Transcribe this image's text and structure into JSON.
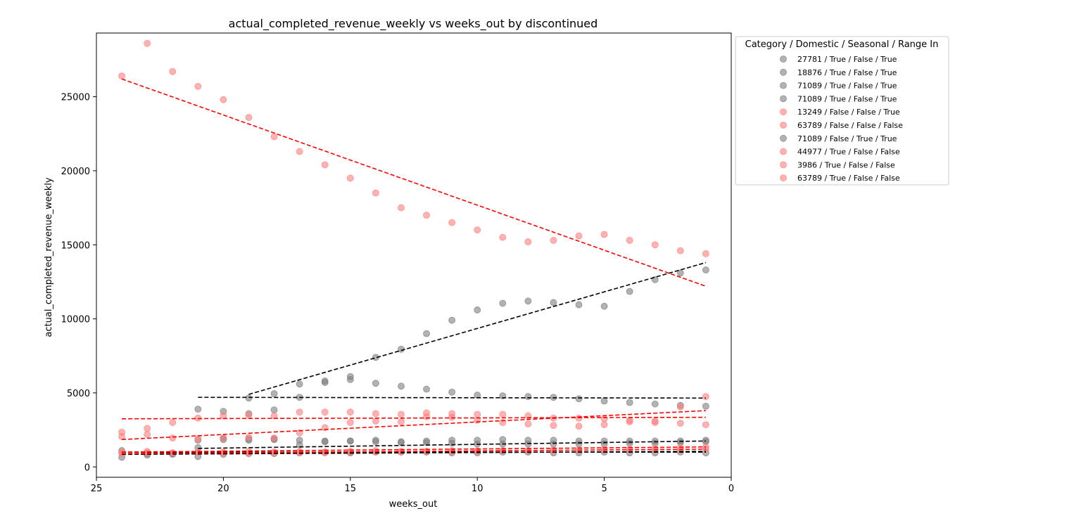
{
  "chart_data": {
    "type": "scatter",
    "title": "actual_completed_revenue_weekly vs weeks_out by discontinued",
    "xlabel": "weeks_out",
    "ylabel": "actual_completed_revenue_weekly",
    "xlim": [
      25,
      0
    ],
    "ylim": [
      -700,
      29300
    ],
    "xticks": [
      25,
      20,
      15,
      10,
      5,
      0
    ],
    "yticks": [
      0,
      5000,
      10000,
      15000,
      20000,
      25000
    ],
    "grid": false,
    "legend": {
      "title": "Category / Domestic / Seasonal / Range In",
      "placement": "outside-upper-right"
    },
    "colors": {
      "true_color": "#7f7f7f",
      "false_color": "#ff7f7f",
      "true_line": "#000000",
      "false_line": "#ff0000"
    },
    "series": [
      {
        "name": "27781 / True / False / True",
        "discontinued": true,
        "x": [
          19,
          18,
          17,
          16,
          15,
          14,
          13,
          12,
          11,
          10,
          9,
          8,
          7,
          6,
          5,
          4,
          3,
          2,
          1
        ],
        "y": [
          4650,
          4950,
          5600,
          5700,
          6100,
          7400,
          7950,
          9000,
          9900,
          10600,
          11050,
          11200,
          11100,
          10950,
          10850,
          11850,
          12650,
          13100,
          13300
        ],
        "trend": [
          [
            19,
            4900
          ],
          [
            1,
            13800
          ]
        ]
      },
      {
        "name": "18876 / True / False / True",
        "discontinued": true,
        "x": [
          21,
          20,
          19,
          18,
          17,
          16,
          15,
          14,
          13,
          12,
          11,
          10,
          9,
          8,
          7,
          6,
          5,
          4,
          3,
          2,
          1
        ],
        "y": [
          3900,
          3750,
          3600,
          3850,
          4700,
          5800,
          5900,
          5650,
          5450,
          5250,
          5050,
          4850,
          4800,
          4750,
          4700,
          4600,
          4450,
          4350,
          4250,
          4150,
          4100
        ],
        "trend": [
          [
            21,
            4700
          ],
          [
            1,
            4650
          ]
        ]
      },
      {
        "name": "71089 / True / False / True",
        "discontinued": true,
        "x": [
          24,
          23,
          22,
          21,
          20,
          19,
          18,
          17,
          16,
          15,
          14,
          13,
          12,
          11,
          10,
          9,
          8,
          7,
          6,
          5,
          4,
          3,
          2,
          1
        ],
        "y": [
          650,
          800,
          850,
          700,
          850,
          900,
          900,
          950,
          1000,
          950,
          1000,
          1000,
          1000,
          950,
          950,
          1000,
          1000,
          950,
          950,
          1000,
          950,
          950,
          1000,
          950
        ],
        "trend": [
          [
            24,
            850
          ],
          [
            1,
            1050
          ]
        ]
      },
      {
        "name": "71089 / True / False / True",
        "discontinued": true,
        "x": [
          21,
          20,
          19,
          18,
          17,
          16,
          15,
          14,
          13,
          12,
          11,
          10,
          9,
          8,
          7,
          6,
          5,
          4,
          3,
          2,
          1
        ],
        "y": [
          1300,
          1850,
          1900,
          1900,
          1800,
          1750,
          1750,
          1700,
          1650,
          1650,
          1600,
          1550,
          1550,
          1550,
          1550,
          1550,
          1550,
          1600,
          1600,
          1650,
          1700
        ],
        "trend": [
          [
            21,
            1250
          ],
          [
            1,
            1750
          ]
        ]
      },
      {
        "name": "13249 / False / False / True",
        "discontinued": false,
        "x": [
          24,
          23,
          22,
          21,
          20,
          19,
          18,
          17,
          16,
          15,
          14,
          13,
          12,
          11,
          10,
          9,
          8,
          7,
          6,
          5,
          4,
          3,
          2,
          1
        ],
        "y": [
          26400,
          28600,
          26700,
          25700,
          24800,
          23600,
          22300,
          21300,
          20400,
          19500,
          18500,
          17500,
          17000,
          16500,
          16000,
          15500,
          15200,
          15300,
          15600,
          15700,
          15300,
          15000,
          14600,
          14400
        ],
        "trend": [
          [
            24,
            26200
          ],
          [
            1,
            12200
          ]
        ]
      },
      {
        "name": "63789 / False / False / False",
        "discontinued": false,
        "x": [
          24,
          23,
          22,
          21,
          20,
          19,
          18,
          17,
          16,
          15,
          14,
          13,
          12,
          11,
          10,
          9,
          8,
          7,
          6,
          5,
          4,
          3,
          2,
          1
        ],
        "y": [
          2350,
          2600,
          3000,
          3300,
          3450,
          3500,
          3450,
          3700,
          3700,
          3700,
          3600,
          3550,
          3650,
          3600,
          3550,
          3550,
          3450,
          3300,
          3300,
          3250,
          3150,
          3100,
          4050,
          4750
        ],
        "trend": [
          [
            24,
            1850
          ],
          [
            1,
            3800
          ]
        ]
      },
      {
        "name": "71089 / False / True / True",
        "discontinued": true,
        "x": [
          24,
          23,
          22,
          21,
          20,
          19,
          18,
          17,
          16,
          15,
          14,
          13,
          12,
          11,
          10,
          9,
          8,
          7,
          6,
          5,
          4,
          3,
          2,
          1
        ],
        "y": [
          1100,
          900,
          900,
          1800,
          1950,
          1800,
          1850,
          1500,
          1700,
          1750,
          1800,
          1700,
          1750,
          1800,
          1800,
          1850,
          1800,
          1800,
          1750,
          1750,
          1750,
          1750,
          1750,
          1800
        ],
        "trend": [
          [
            24,
            1000
          ],
          [
            1,
            1000
          ]
        ]
      },
      {
        "name": "44977 / True / False / False",
        "discontinued": false,
        "x": [
          24,
          23,
          22,
          21,
          20,
          19,
          18,
          17,
          16,
          15,
          14,
          13,
          12,
          11,
          10,
          9,
          8,
          7,
          6,
          5,
          4,
          3,
          2,
          1
        ],
        "y": [
          2050,
          2200,
          1950,
          1900,
          1950,
          2000,
          1950,
          2300,
          2650,
          3000,
          3100,
          3050,
          3400,
          3350,
          3150,
          3000,
          2900,
          2800,
          2750,
          2850,
          3050,
          3000,
          2950,
          2850
        ],
        "trend": [
          [
            24,
            3250
          ],
          [
            1,
            3350
          ]
        ]
      },
      {
        "name": "3986 / True / False / False",
        "discontinued": false,
        "x": [
          24,
          23,
          22,
          21,
          20,
          19,
          18,
          17,
          16,
          15,
          14,
          13,
          12,
          11,
          10,
          9,
          8,
          7,
          6,
          5,
          4,
          3,
          2,
          1
        ],
        "y": [
          1000,
          1050,
          950,
          1000,
          1000,
          1050,
          1000,
          1050,
          1000,
          1050,
          1100,
          1050,
          1050,
          1100,
          1100,
          1100,
          1100,
          1150,
          1150,
          1200,
          1200,
          1250,
          1300,
          1350
        ],
        "trend": [
          [
            24,
            1000
          ],
          [
            1,
            1350
          ]
        ]
      },
      {
        "name": "63789 / True / False / False",
        "discontinued": false,
        "x": [
          24,
          23,
          22,
          21,
          20,
          19,
          18,
          17,
          16,
          15,
          14,
          13,
          12,
          11,
          10,
          9,
          8,
          7,
          6,
          5,
          4,
          3,
          2,
          1
        ],
        "y": [
          900,
          950,
          950,
          1000,
          950,
          900,
          1000,
          950,
          950,
          1000,
          1000,
          1000,
          1050,
          1050,
          1050,
          1100,
          1100,
          1100,
          1150,
          1150,
          1150,
          1150,
          1150,
          1200
        ],
        "trend": [
          [
            24,
            900
          ],
          [
            1,
            1200
          ]
        ]
      }
    ]
  }
}
